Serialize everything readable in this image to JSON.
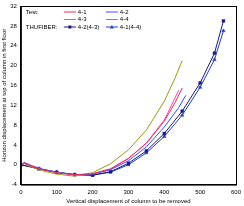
{
  "chart_data": {
    "type": "line",
    "x_label": "Vertical displacement of column to be removed",
    "y_label": "Horizon displacement at top of column in first floor",
    "xlim": [
      0,
      600
    ],
    "xticks": [
      0,
      100,
      200,
      300,
      400,
      500,
      600
    ],
    "ylim": [
      -4,
      32
    ],
    "yticks": [
      -4,
      0,
      4,
      8,
      12,
      16,
      20,
      24,
      28,
      32
    ],
    "grid": false,
    "legend": "upper left",
    "series": [
      {
        "name": "4-1",
        "group": "Test:",
        "color": "#f0304a",
        "marker": "none",
        "line_style": "solid",
        "x": [
          0,
          10,
          30,
          60,
          100,
          150,
          200,
          250,
          300,
          350,
          400,
          430,
          450
        ],
        "values": [
          0,
          0.3,
          -0.3,
          -1,
          -1.6,
          -2,
          -1.8,
          -0.8,
          1.3,
          4.3,
          8.8,
          12.5,
          15.5
        ]
      },
      {
        "name": "4-2",
        "group": "Test:",
        "color": "#3a4cff",
        "marker": "none",
        "line_style": "solid",
        "x": [
          0,
          10,
          30,
          60,
          100,
          150,
          200,
          250,
          300,
          350,
          400,
          440,
          460
        ],
        "values": [
          0,
          0.4,
          -0.2,
          -0.9,
          -1.5,
          -2,
          -1.9,
          -1,
          0.8,
          3.6,
          7.6,
          11.5,
          14
        ]
      },
      {
        "name": "4-3",
        "group": "Test:",
        "color": "#9a9a1a",
        "marker": "none",
        "line_style": "solid",
        "x": [
          0,
          10,
          30,
          60,
          100,
          150,
          200,
          250,
          300,
          350,
          400,
          430,
          450
        ],
        "values": [
          0,
          0.2,
          -0.5,
          -1.2,
          -1.9,
          -2.3,
          -1.6,
          0.2,
          3,
          7,
          12.8,
          17.5,
          21
        ]
      },
      {
        "name": "4-4",
        "group": "Test:",
        "color": "#ff40c0",
        "marker": "none",
        "line_style": "solid",
        "x": [
          0,
          10,
          30,
          60,
          100,
          150,
          200,
          250,
          300,
          350,
          400,
          440
        ],
        "values": [
          0,
          0.5,
          -0.2,
          -0.9,
          -1.6,
          -2.1,
          -1.9,
          -0.9,
          1.2,
          4.4,
          9,
          15
        ]
      },
      {
        "name": "4-2(4-3)",
        "group": "THUFIBER:",
        "color": "#1a1a80",
        "marker": "square",
        "line_style": "solid",
        "x": [
          0,
          50,
          100,
          150,
          200,
          250,
          300,
          350,
          400,
          450,
          500,
          540,
          565
        ],
        "values": [
          0,
          -0.8,
          -1.5,
          -2,
          -2.1,
          -1.4,
          0.3,
          2.8,
          6.3,
          10.8,
          16.5,
          22.5,
          29
        ]
      },
      {
        "name": "4-1(4-4)",
        "group": "THUFIBER:",
        "color": "#2040c0",
        "marker": "triangle",
        "line_style": "solid",
        "x": [
          0,
          50,
          100,
          150,
          200,
          250,
          300,
          350,
          400,
          450,
          500,
          540,
          565
        ],
        "values": [
          0,
          -0.8,
          -1.5,
          -2,
          -2.1,
          -1.5,
          0,
          2.4,
          5.7,
          10,
          15.6,
          21.2,
          27
        ]
      }
    ]
  }
}
